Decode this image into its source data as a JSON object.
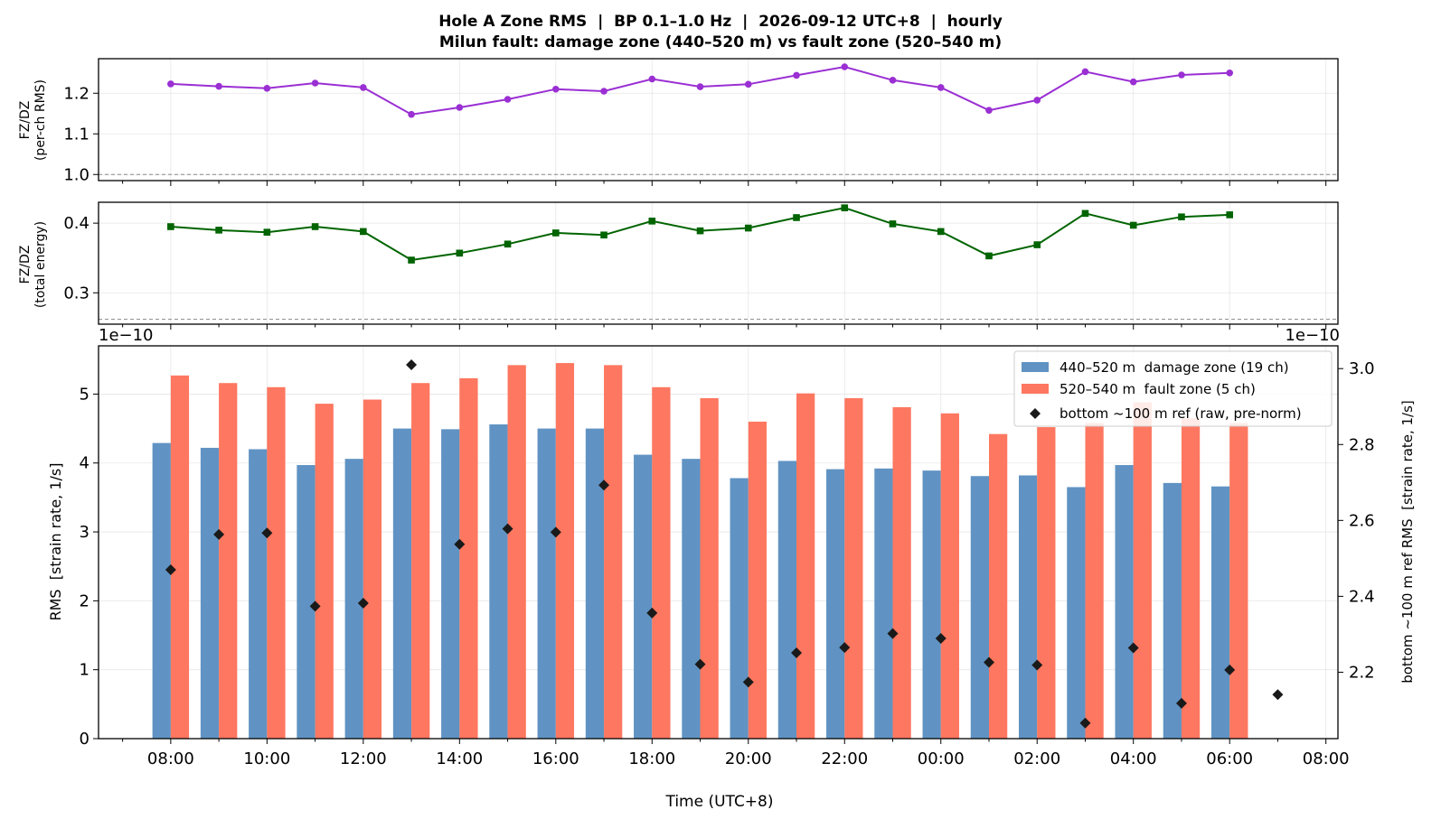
{
  "title": {
    "line1": "Hole A Zone RMS  |  BP 0.1–1.0 Hz  |  2026-09-12 UTC+8  |  hourly",
    "line2": "Milun fault: damage zone (440–520 m) vs fault zone (520–540 m)"
  },
  "colors": {
    "damage": "#6093c3",
    "fault": "#fe7760",
    "ratio_rms": "#9a2fd3",
    "ratio_energy": "#006400",
    "ref_marker": "#1a1a1a"
  },
  "chart_data": [
    {
      "id": "ratio_rms",
      "type": "line",
      "ylabel_line1": "FZ/DZ",
      "ylabel_line2": "(per-ch RMS)",
      "ylim": [
        0.985,
        1.285
      ],
      "yticks": [
        1.0,
        1.1,
        1.2
      ],
      "ytick_labels": [
        "1.0",
        "1.1",
        "1.2"
      ],
      "reference_line": 1.0,
      "grid": true,
      "marker": "circle",
      "x": [
        0,
        1,
        2,
        3,
        4,
        5,
        6,
        7,
        8,
        9,
        10,
        11,
        12,
        13,
        14,
        15,
        16,
        17,
        18,
        19,
        20,
        21,
        22
      ],
      "values": [
        1.223,
        1.217,
        1.212,
        1.225,
        1.214,
        1.148,
        1.165,
        1.185,
        1.21,
        1.205,
        1.235,
        1.216,
        1.222,
        1.244,
        1.265,
        1.232,
        1.214,
        1.158,
        1.183,
        1.253,
        1.228,
        1.245,
        1.25
      ]
    },
    {
      "id": "ratio_energy",
      "type": "line",
      "ylabel_line1": "FZ/DZ",
      "ylabel_line2": "(total energy)",
      "ylim": [
        0.255,
        0.43
      ],
      "yticks": [
        0.3,
        0.4
      ],
      "ytick_labels": [
        "0.3",
        "0.4"
      ],
      "reference_line": 0.262,
      "grid": true,
      "marker": "square",
      "x": [
        0,
        1,
        2,
        3,
        4,
        5,
        6,
        7,
        8,
        9,
        10,
        11,
        12,
        13,
        14,
        15,
        16,
        17,
        18,
        19,
        20,
        21,
        22
      ],
      "values": [
        0.395,
        0.39,
        0.387,
        0.395,
        0.388,
        0.347,
        0.357,
        0.37,
        0.386,
        0.383,
        0.403,
        0.389,
        0.393,
        0.408,
        0.422,
        0.399,
        0.388,
        0.353,
        0.369,
        0.414,
        0.397,
        0.409,
        0.412
      ]
    },
    {
      "id": "rms",
      "type": "bar",
      "xlabel": "Time (UTC+8)",
      "ylabel": "RMS  [strain rate, 1/s]",
      "y2label": "bottom ~100 m ref RMS  [strain rate, 1/s]",
      "scale_left": "1e−10",
      "scale_right": "1e−10",
      "ylim": [
        0,
        5.7
      ],
      "yticks": [
        0,
        1,
        2,
        3,
        4,
        5
      ],
      "y2lim": [
        2.025,
        3.06
      ],
      "y2ticks": [
        2.2,
        2.4,
        2.6,
        2.8,
        3.0
      ],
      "y2tick_labels": [
        "2.2",
        "2.4",
        "2.6",
        "2.8",
        "3.0"
      ],
      "xlim": [
        -1.5,
        24.25
      ],
      "xtick_positions": [
        0,
        2,
        4,
        6,
        8,
        10,
        12,
        14,
        16,
        18,
        20,
        22,
        24
      ],
      "xtick_labels": [
        "08:00",
        "10:00",
        "12:00",
        "14:00",
        "16:00",
        "18:00",
        "20:00",
        "22:00",
        "00:00",
        "02:00",
        "04:00",
        "06:00",
        "08:00"
      ],
      "legend_position": "top-right",
      "grid": true,
      "x": [
        0,
        1,
        2,
        3,
        4,
        5,
        6,
        7,
        8,
        9,
        10,
        11,
        12,
        13,
        14,
        15,
        16,
        17,
        18,
        19,
        20,
        21,
        22
      ],
      "series": [
        {
          "name": "440–520 m  damage zone (19 ch)",
          "kind": "bar",
          "values": [
            4.29,
            4.22,
            4.2,
            3.97,
            4.06,
            4.5,
            4.49,
            4.56,
            4.5,
            4.5,
            4.12,
            4.06,
            3.78,
            4.03,
            3.91,
            3.92,
            3.89,
            3.81,
            3.82,
            3.65,
            3.97,
            3.71,
            3.66
          ]
        },
        {
          "name": "520–540 m  fault zone (5 ch)",
          "kind": "bar",
          "values": [
            5.27,
            5.16,
            5.1,
            4.86,
            4.92,
            5.16,
            5.23,
            5.42,
            5.45,
            5.42,
            5.1,
            4.94,
            4.6,
            5.01,
            4.94,
            4.81,
            4.72,
            4.42,
            4.52,
            4.58,
            4.88,
            4.65,
            4.58
          ]
        },
        {
          "name": "bottom ~100 m ref (raw, pre-norm)",
          "kind": "scatter",
          "axis": "right",
          "x": [
            0,
            1,
            2,
            3,
            4,
            5,
            6,
            7,
            8,
            9,
            10,
            11,
            12,
            13,
            14,
            15,
            16,
            17,
            18,
            19,
            20,
            21,
            22,
            23
          ],
          "values": [
            2.47,
            2.563,
            2.567,
            2.374,
            2.382,
            3.01,
            2.537,
            2.578,
            2.569,
            2.693,
            2.356,
            2.221,
            2.174,
            2.251,
            2.265,
            2.302,
            2.289,
            2.226,
            2.219,
            2.066,
            2.264,
            2.118,
            2.206,
            2.141
          ]
        }
      ]
    }
  ]
}
